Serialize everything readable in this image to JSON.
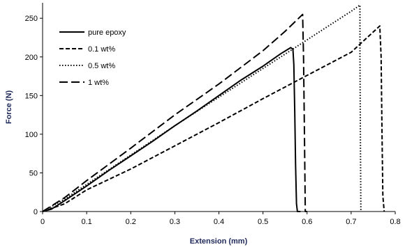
{
  "chart_data": {
    "type": "line",
    "title": "",
    "xlabel": "Extension (mm)",
    "ylabel": "Force (N)",
    "xlim": [
      0,
      0.8
    ],
    "ylim": [
      0,
      270
    ],
    "x_ticks": [
      "0",
      "0.1",
      "0.2",
      "0.3",
      "0.4",
      "0.5",
      "0.6",
      "0.7",
      "0.8"
    ],
    "y_ticks": [
      "0",
      "50",
      "100",
      "150",
      "200",
      "250"
    ],
    "grid": false,
    "legend_position": "top-left",
    "series": [
      {
        "name": "pure epoxy",
        "style": "solid",
        "points": [
          [
            0,
            0
          ],
          [
            0.02,
            3
          ],
          [
            0.05,
            14
          ],
          [
            0.1,
            33
          ],
          [
            0.15,
            53
          ],
          [
            0.2,
            72
          ],
          [
            0.25,
            91
          ],
          [
            0.3,
            111
          ],
          [
            0.35,
            130
          ],
          [
            0.4,
            150
          ],
          [
            0.45,
            170
          ],
          [
            0.5,
            188
          ],
          [
            0.54,
            204
          ],
          [
            0.563,
            212
          ],
          [
            0.568,
            210
          ],
          [
            0.57,
            190
          ],
          [
            0.572,
            130
          ],
          [
            0.574,
            60
          ],
          [
            0.576,
            10
          ],
          [
            0.578,
            0
          ],
          [
            0.585,
            0
          ]
        ]
      },
      {
        "name": "0.1 wt%",
        "style": "dashed",
        "points": [
          [
            0,
            0
          ],
          [
            0.05,
            10
          ],
          [
            0.1,
            28
          ],
          [
            0.2,
            55
          ],
          [
            0.3,
            85
          ],
          [
            0.4,
            115
          ],
          [
            0.5,
            146
          ],
          [
            0.6,
            176
          ],
          [
            0.7,
            206
          ],
          [
            0.765,
            240
          ],
          [
            0.768,
            200
          ],
          [
            0.77,
            100
          ],
          [
            0.772,
            20
          ],
          [
            0.775,
            0
          ]
        ]
      },
      {
        "name": "0.5 wt%",
        "style": "dotted",
        "points": [
          [
            0,
            0
          ],
          [
            0.05,
            16
          ],
          [
            0.1,
            35
          ],
          [
            0.2,
            73
          ],
          [
            0.3,
            111
          ],
          [
            0.4,
            148
          ],
          [
            0.5,
            185
          ],
          [
            0.6,
            222
          ],
          [
            0.7,
            259
          ],
          [
            0.72,
            267
          ],
          [
            0.72,
            200
          ],
          [
            0.721,
            100
          ],
          [
            0.722,
            0
          ]
        ]
      },
      {
        "name": "1 wt%",
        "style": "longdash",
        "points": [
          [
            0,
            0
          ],
          [
            0.05,
            18
          ],
          [
            0.1,
            40
          ],
          [
            0.2,
            82
          ],
          [
            0.3,
            125
          ],
          [
            0.4,
            165
          ],
          [
            0.5,
            208
          ],
          [
            0.55,
            233
          ],
          [
            0.59,
            255
          ],
          [
            0.592,
            200
          ],
          [
            0.594,
            100
          ],
          [
            0.596,
            0
          ],
          [
            0.6,
            0
          ]
        ]
      }
    ]
  }
}
